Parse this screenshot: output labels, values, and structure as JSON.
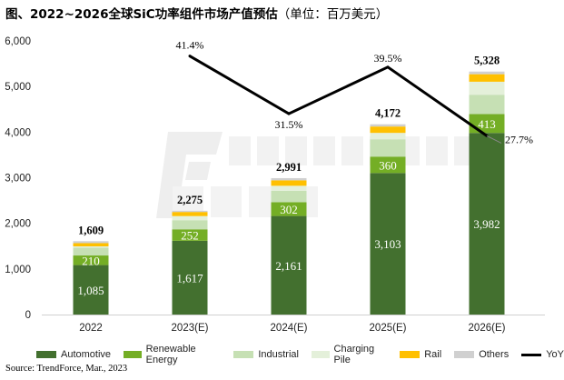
{
  "title": {
    "main": "图、2022~2026全球SiC功率组件市场产值预估",
    "unit": "（单位：百万美元）"
  },
  "source": "Source: TrendForce, Mar., 2023",
  "watermark": {
    "brand": "TRENDFORCE",
    "cn": "集邦咨询"
  },
  "chart_data": {
    "type": "bar",
    "stacked": true,
    "categories": [
      "2022",
      "2023(E)",
      "2024(E)",
      "2025(E)",
      "2026(E)"
    ],
    "ylim": [
      0,
      6000
    ],
    "yticks": [
      "0",
      "1,000",
      "2,000",
      "3,000",
      "4,000",
      "5,000",
      "6,000"
    ],
    "ytick_values": [
      0,
      1000,
      2000,
      3000,
      4000,
      5000,
      6000
    ],
    "grid": false,
    "legend_placement": "bottom",
    "series": [
      {
        "name": "Automotive",
        "color": "#43702f",
        "values": [
          1085,
          1617,
          2161,
          3103,
          3982
        ],
        "labels": [
          "1,085",
          "1,617",
          "2,161",
          "3,103",
          "3,982"
        ]
      },
      {
        "name": "Renewable Energy",
        "color": "#74ae25",
        "values": [
          210,
          252,
          302,
          360,
          413
        ],
        "labels": [
          "210",
          "252",
          "302",
          "360",
          "413"
        ]
      },
      {
        "name": "Industrial",
        "color": "#c6e0b4",
        "values": [
          170,
          200,
          250,
          380,
          425
        ]
      },
      {
        "name": "Charging Pile",
        "color": "#e4f0da",
        "values": [
          30,
          90,
          110,
          140,
          285
        ]
      },
      {
        "name": "Rail",
        "color": "#ffc000",
        "values": [
          70,
          90,
          120,
          140,
          165
        ]
      },
      {
        "name": "Others",
        "color": "#d0d0d0",
        "values": [
          44,
          26,
          48,
          49,
          58
        ]
      }
    ],
    "totals": [
      1609,
      2275,
      2991,
      4172,
      5328
    ],
    "total_labels": [
      "1,609",
      "2,275",
      "2,991",
      "4,172",
      "5,328"
    ],
    "line": {
      "name": "YoY",
      "color": "#000000",
      "axis": "secondary-hidden",
      "x": [
        "2023(E)",
        "2024(E)",
        "2025(E)",
        "2026(E)"
      ],
      "values": [
        41.4,
        31.5,
        39.5,
        27.7
      ],
      "labels": [
        "41.4%",
        "31.5%",
        "39.5%",
        "27.7%"
      ],
      "y2lim": [
        -3,
        44
      ]
    }
  }
}
